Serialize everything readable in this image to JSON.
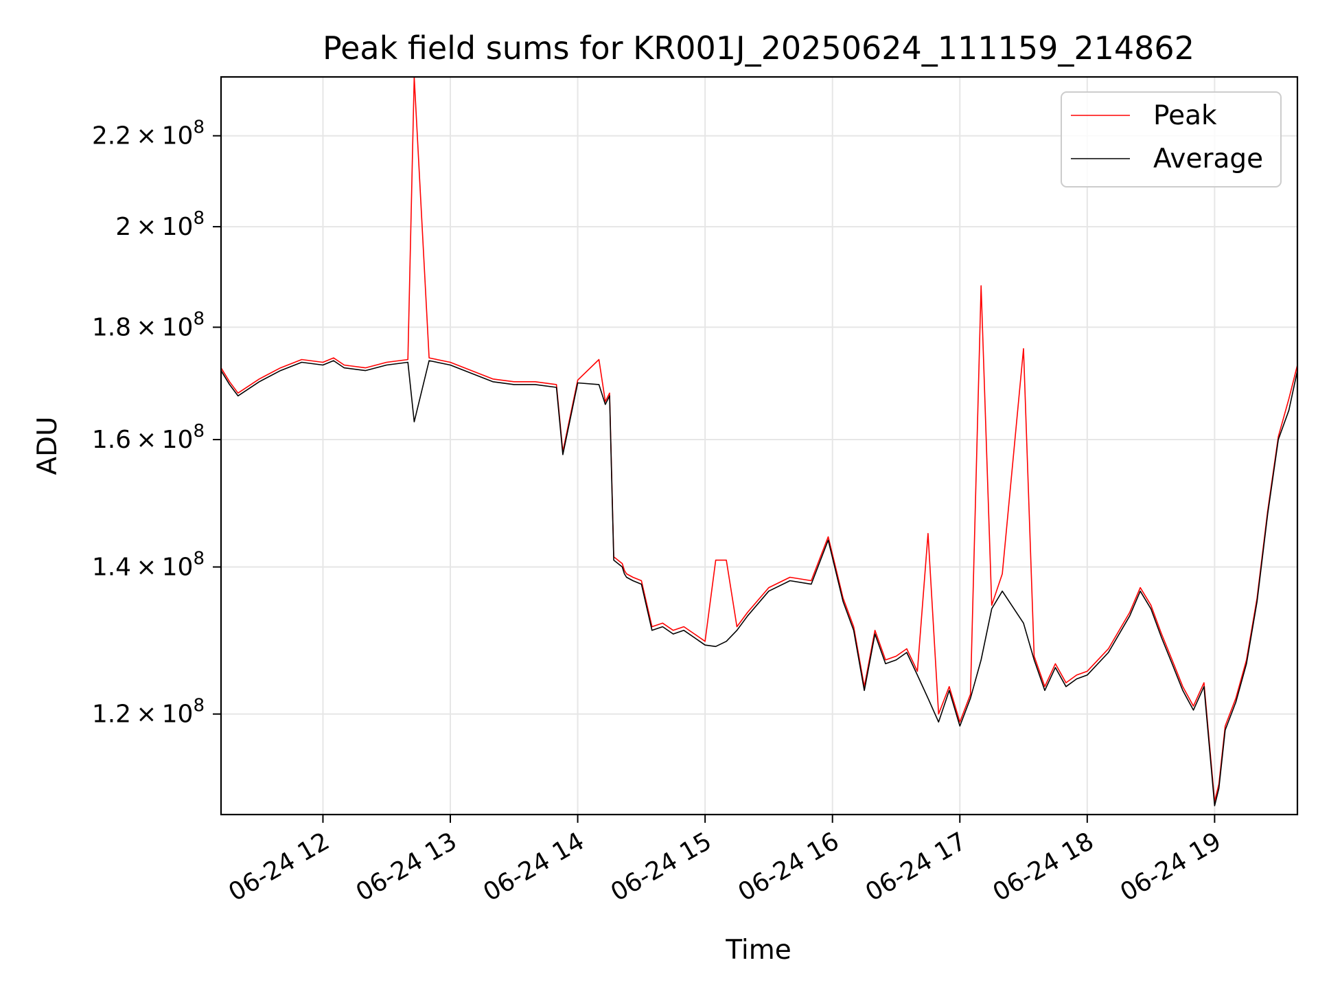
{
  "chart_data": {
    "type": "line",
    "title": "Peak field sums for KR001J_20250624_111159_214862",
    "xlabel": "Time",
    "ylabel": "ADU",
    "y_scale": "log",
    "xlim": [
      "2025-06-24 11:12",
      "2025-06-24 19:39"
    ],
    "ylim": [
      108000000,
      234000000
    ],
    "grid": true,
    "legend_position": "upper right",
    "x_ticks": [
      {
        "t": "2025-06-24 12:00",
        "label": "06-24 12"
      },
      {
        "t": "2025-06-24 13:00",
        "label": "06-24 13"
      },
      {
        "t": "2025-06-24 14:00",
        "label": "06-24 14"
      },
      {
        "t": "2025-06-24 15:00",
        "label": "06-24 15"
      },
      {
        "t": "2025-06-24 16:00",
        "label": "06-24 16"
      },
      {
        "t": "2025-06-24 17:00",
        "label": "06-24 17"
      },
      {
        "t": "2025-06-24 18:00",
        "label": "06-24 18"
      },
      {
        "t": "2025-06-24 19:00",
        "label": "06-24 19"
      }
    ],
    "y_ticks": [
      {
        "value": 120000000,
        "mantissa": "1.2",
        "exponent": "8"
      },
      {
        "value": 140000000,
        "mantissa": "1.4",
        "exponent": "8"
      },
      {
        "value": 160000000,
        "mantissa": "1.6",
        "exponent": "8"
      },
      {
        "value": 180000000,
        "mantissa": "1.8",
        "exponent": "8"
      },
      {
        "value": 200000000,
        "mantissa": "2",
        "exponent": "8"
      },
      {
        "value": 220000000,
        "mantissa": "2.2",
        "exponent": "8"
      }
    ],
    "x": [
      "2025-06-24 11:12",
      "2025-06-24 11:16",
      "2025-06-24 11:20",
      "2025-06-24 11:30",
      "2025-06-24 11:40",
      "2025-06-24 11:50",
      "2025-06-24 12:00",
      "2025-06-24 12:05",
      "2025-06-24 12:10",
      "2025-06-24 12:20",
      "2025-06-24 12:30",
      "2025-06-24 12:40",
      "2025-06-24 12:43",
      "2025-06-24 12:50",
      "2025-06-24 13:00",
      "2025-06-24 13:10",
      "2025-06-24 13:20",
      "2025-06-24 13:30",
      "2025-06-24 13:40",
      "2025-06-24 13:50",
      "2025-06-24 13:53",
      "2025-06-24 14:00",
      "2025-06-24 14:10",
      "2025-06-24 14:13",
      "2025-06-24 14:15",
      "2025-06-24 14:17",
      "2025-06-24 14:21",
      "2025-06-24 14:22",
      "2025-06-24 14:23",
      "2025-06-24 14:26",
      "2025-06-24 14:30",
      "2025-06-24 14:35",
      "2025-06-24 14:40",
      "2025-06-24 14:45",
      "2025-06-24 14:50",
      "2025-06-24 14:55",
      "2025-06-24 15:00",
      "2025-06-24 15:05",
      "2025-06-24 15:10",
      "2025-06-24 15:15",
      "2025-06-24 15:20",
      "2025-06-24 15:30",
      "2025-06-24 15:40",
      "2025-06-24 15:50",
      "2025-06-24 15:58",
      "2025-06-24 16:05",
      "2025-06-24 16:10",
      "2025-06-24 16:15",
      "2025-06-24 16:20",
      "2025-06-24 16:25",
      "2025-06-24 16:30",
      "2025-06-24 16:35",
      "2025-06-24 16:40",
      "2025-06-24 16:45",
      "2025-06-24 16:50",
      "2025-06-24 16:55",
      "2025-06-24 17:00",
      "2025-06-24 17:05",
      "2025-06-24 17:10",
      "2025-06-24 17:15",
      "2025-06-24 17:20",
      "2025-06-24 17:30",
      "2025-06-24 17:35",
      "2025-06-24 17:40",
      "2025-06-24 17:45",
      "2025-06-24 17:50",
      "2025-06-24 17:55",
      "2025-06-24 18:00",
      "2025-06-24 18:10",
      "2025-06-24 18:20",
      "2025-06-24 18:25",
      "2025-06-24 18:30",
      "2025-06-24 18:35",
      "2025-06-24 18:40",
      "2025-06-24 18:45",
      "2025-06-24 18:50",
      "2025-06-24 18:55",
      "2025-06-24 19:00",
      "2025-06-24 19:02",
      "2025-06-24 19:05",
      "2025-06-24 19:10",
      "2025-06-24 19:15",
      "2025-06-24 19:20",
      "2025-06-24 19:25",
      "2025-06-24 19:30",
      "2025-06-24 19:35",
      "2025-06-24 19:39"
    ],
    "series": [
      {
        "name": "Average",
        "color": "#000000",
        "values": [
          172000000,
          169500000,
          167500000,
          170000000,
          172000000,
          173500000,
          173000000,
          173800000,
          172500000,
          172000000,
          173000000,
          173500000,
          163000000,
          173800000,
          173000000,
          171500000,
          170000000,
          169500000,
          169500000,
          169000000,
          157500000,
          169800000,
          169500000,
          166000000,
          167500000,
          141000000,
          140000000,
          139000000,
          138500000,
          138000000,
          137500000,
          131000000,
          131500000,
          130500000,
          131000000,
          130000000,
          129000000,
          128800000,
          129500000,
          131000000,
          133000000,
          136500000,
          138000000,
          137500000,
          144000000,
          135000000,
          131000000,
          123000000,
          130500000,
          126500000,
          127000000,
          128000000,
          125000000,
          122000000,
          119000000,
          123000000,
          118500000,
          122000000,
          127000000,
          134000000,
          136500000,
          132000000,
          127000000,
          123000000,
          126000000,
          123500000,
          124500000,
          125000000,
          128000000,
          133000000,
          136500000,
          134000000,
          130000000,
          126500000,
          123000000,
          120500000,
          123500000,
          109000000,
          111000000,
          118000000,
          121500000,
          126500000,
          135000000,
          148000000,
          160000000,
          165000000,
          172000000
        ]
      },
      {
        "name": "Peak",
        "color": "#ff0000",
        "values": [
          172500000,
          170000000,
          168000000,
          170500000,
          172500000,
          174000000,
          173500000,
          174300000,
          173000000,
          172500000,
          173500000,
          174000000,
          234000000,
          174300000,
          173500000,
          172000000,
          170500000,
          170000000,
          170000000,
          169500000,
          158000000,
          170300000,
          174000000,
          166500000,
          168000000,
          141500000,
          140500000,
          139500000,
          139000000,
          138500000,
          138000000,
          131500000,
          132000000,
          131000000,
          131500000,
          130500000,
          129500000,
          141000000,
          141000000,
          131500000,
          133500000,
          137000000,
          138500000,
          138000000,
          144500000,
          135500000,
          131500000,
          123500000,
          131000000,
          127000000,
          127500000,
          128500000,
          125500000,
          145000000,
          120000000,
          123500000,
          119000000,
          122500000,
          188000000,
          134500000,
          139000000,
          176000000,
          127500000,
          123500000,
          126500000,
          124000000,
          125000000,
          125500000,
          128500000,
          133500000,
          137000000,
          134500000,
          130500000,
          127000000,
          123500000,
          121000000,
          124000000,
          109500000,
          111500000,
          118500000,
          122000000,
          127000000,
          135500000,
          148500000,
          160500000,
          167000000,
          173000000
        ]
      }
    ]
  }
}
